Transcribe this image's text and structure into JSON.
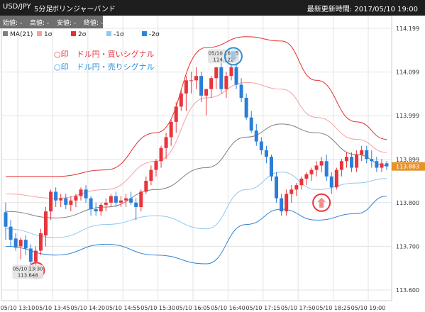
{
  "header": {
    "symbol": "USD/JPY",
    "timeframe": "5分足",
    "indicator": "ボリンジャーバンド",
    "updated_label": "最新更新時間: ",
    "updated_value": "2017/05/10 19:00"
  },
  "ohlc": {
    "open": "始値: -",
    "high": "高値: -",
    "low": "安値: -",
    "close": "終値: -"
  },
  "legend": [
    {
      "label": "MA(21)",
      "color": "#808080"
    },
    {
      "label": "1σ",
      "color": "#f5a0a0"
    },
    {
      "label": "2σ",
      "color": "#e62e2e"
    },
    {
      "label": "-1σ",
      "color": "#8fc8ef"
    },
    {
      "label": "-2σ",
      "color": "#2e86d6"
    }
  ],
  "signals": {
    "buy": "○印　ドル円・買いシグナル",
    "sell": "○印　ドル円・売りシグナル"
  },
  "colors": {
    "up": "#e8343c",
    "down": "#2a7ed8",
    "price_tag": "#e6932a"
  },
  "chart_data": {
    "type": "candlestick",
    "y_ticks": [
      "114.199",
      "114.099",
      "113.999",
      "113.899",
      "113.800",
      "113.700",
      "113.600"
    ],
    "ylim": [
      113.58,
      114.22
    ],
    "x_ticks": [
      "05/10 13:10",
      "05/10 13:45",
      "05/10 14:20",
      "05/10 14:55",
      "05/10 15:30",
      "05/10 16:05",
      "05/10 16:40",
      "05/10 17:15",
      "05/10 17:50",
      "05/10 18:25",
      "05/10 19:00"
    ],
    "current_price": "113.883",
    "candles": [
      [
        113.778,
        113.8,
        113.715,
        113.745
      ],
      [
        113.745,
        113.76,
        113.7,
        113.715
      ],
      [
        113.718,
        113.73,
        113.69,
        113.697
      ],
      [
        113.7,
        113.72,
        113.67,
        113.715
      ],
      [
        113.715,
        113.725,
        113.68,
        113.695
      ],
      [
        113.695,
        113.705,
        113.655,
        113.665
      ],
      [
        113.665,
        113.7,
        113.65,
        113.69
      ],
      [
        113.69,
        113.74,
        113.68,
        113.73
      ],
      [
        113.725,
        113.79,
        113.7,
        113.78
      ],
      [
        113.78,
        113.83,
        113.76,
        113.825
      ],
      [
        113.825,
        113.835,
        113.79,
        113.805
      ],
      [
        113.805,
        113.82,
        113.79,
        113.81
      ],
      [
        113.81,
        113.82,
        113.785,
        113.795
      ],
      [
        113.795,
        113.815,
        113.78,
        113.805
      ],
      [
        113.805,
        113.82,
        113.79,
        113.815
      ],
      [
        113.815,
        113.835,
        113.805,
        113.83
      ],
      [
        113.83,
        113.84,
        113.8,
        113.81
      ],
      [
        113.81,
        113.815,
        113.77,
        113.785
      ],
      [
        113.785,
        113.8,
        113.77,
        113.78
      ],
      [
        113.78,
        113.8,
        113.77,
        113.795
      ],
      [
        113.795,
        113.81,
        113.78,
        113.8
      ],
      [
        113.8,
        113.82,
        113.79,
        113.815
      ],
      [
        113.815,
        113.825,
        113.79,
        113.8
      ],
      [
        113.8,
        113.815,
        113.79,
        113.805
      ],
      [
        113.805,
        113.82,
        113.79,
        113.81
      ],
      [
        113.81,
        113.825,
        113.795,
        113.8
      ],
      [
        113.8,
        113.81,
        113.76,
        113.79
      ],
      [
        113.79,
        113.83,
        113.78,
        113.825
      ],
      [
        113.825,
        113.86,
        113.82,
        113.85
      ],
      [
        113.85,
        113.885,
        113.84,
        113.875
      ],
      [
        113.875,
        113.9,
        113.86,
        113.895
      ],
      [
        113.895,
        113.93,
        113.88,
        113.925
      ],
      [
        113.925,
        113.96,
        113.9,
        113.95
      ],
      [
        113.95,
        113.99,
        113.93,
        113.985
      ],
      [
        113.985,
        114.03,
        113.96,
        114.02
      ],
      [
        114.02,
        114.06,
        114.01,
        114.05
      ],
      [
        114.05,
        114.09,
        114.01,
        114.08
      ],
      [
        114.08,
        114.1,
        114.05,
        114.08
      ],
      [
        114.08,
        114.11,
        114.06,
        114.09
      ],
      [
        114.09,
        114.1,
        114.03,
        114.045
      ],
      [
        114.045,
        114.06,
        114.0,
        114.06
      ],
      [
        114.06,
        114.09,
        114.04,
        114.085
      ],
      [
        114.085,
        114.11,
        114.06,
        114.11
      ],
      [
        114.11,
        114.122,
        114.05,
        114.06
      ],
      [
        114.06,
        114.1,
        114.04,
        114.09
      ],
      [
        114.09,
        114.115,
        114.08,
        114.11
      ],
      [
        114.11,
        114.12,
        114.06,
        114.07
      ],
      [
        114.07,
        114.085,
        114.03,
        114.04
      ],
      [
        114.04,
        114.05,
        113.99,
        113.995
      ],
      [
        113.995,
        114.01,
        113.96,
        113.965
      ],
      [
        113.965,
        113.98,
        113.93,
        113.94
      ],
      [
        113.94,
        113.95,
        113.91,
        113.92
      ],
      [
        113.92,
        113.93,
        113.89,
        113.905
      ],
      [
        113.905,
        113.91,
        113.85,
        113.86
      ],
      [
        113.86,
        113.87,
        113.8,
        113.81
      ],
      [
        113.81,
        113.82,
        113.77,
        113.78
      ],
      [
        113.78,
        113.83,
        113.77,
        113.82
      ],
      [
        113.82,
        113.84,
        113.8,
        113.83
      ],
      [
        113.83,
        113.845,
        113.815,
        113.84
      ],
      [
        113.84,
        113.86,
        113.83,
        113.855
      ],
      [
        113.855,
        113.87,
        113.84,
        113.865
      ],
      [
        113.865,
        113.88,
        113.85,
        113.875
      ],
      [
        113.875,
        113.895,
        113.86,
        113.885
      ],
      [
        113.885,
        113.905,
        113.87,
        113.895
      ],
      [
        113.895,
        113.91,
        113.85,
        113.86
      ],
      [
        113.86,
        113.87,
        113.82,
        113.835
      ],
      [
        113.835,
        113.88,
        113.83,
        113.875
      ],
      [
        113.875,
        113.9,
        113.86,
        113.895
      ],
      [
        113.895,
        113.915,
        113.88,
        113.905
      ],
      [
        113.905,
        113.915,
        113.87,
        113.88
      ],
      [
        113.88,
        113.92,
        113.87,
        113.91
      ],
      [
        113.91,
        113.93,
        113.895,
        113.92
      ],
      [
        113.92,
        113.93,
        113.89,
        113.9
      ],
      [
        113.9,
        113.92,
        113.88,
        113.895
      ],
      [
        113.895,
        113.905,
        113.87,
        113.88
      ],
      [
        113.88,
        113.9,
        113.87,
        113.89
      ],
      [
        113.89,
        113.895,
        113.875,
        113.883
      ]
    ],
    "bands": {
      "ma": [
        [
          0,
          113.78
        ],
        [
          10,
          113.765
        ],
        [
          20,
          113.79
        ],
        [
          30,
          113.83
        ],
        [
          40,
          113.88
        ],
        [
          48,
          113.95
        ],
        [
          55,
          113.98
        ],
        [
          62,
          113.96
        ],
        [
          70,
          113.91
        ],
        [
          76,
          113.885
        ]
      ],
      "p1": [
        [
          0,
          113.82
        ],
        [
          10,
          113.81
        ],
        [
          20,
          113.83
        ],
        [
          30,
          113.895
        ],
        [
          40,
          114.04
        ],
        [
          48,
          114.075
        ],
        [
          55,
          114.06
        ],
        [
          62,
          113.995
        ],
        [
          70,
          113.945
        ],
        [
          76,
          113.915
        ]
      ],
      "p2": [
        [
          0,
          113.86
        ],
        [
          10,
          113.86
        ],
        [
          20,
          113.875
        ],
        [
          30,
          113.96
        ],
        [
          40,
          114.155
        ],
        [
          48,
          114.18
        ],
        [
          55,
          114.17
        ],
        [
          62,
          114.08
        ],
        [
          70,
          113.985
        ],
        [
          76,
          113.945
        ]
      ],
      "m1": [
        [
          0,
          113.74
        ],
        [
          10,
          113.72
        ],
        [
          20,
          113.75
        ],
        [
          30,
          113.77
        ],
        [
          40,
          113.74
        ],
        [
          48,
          113.83
        ],
        [
          55,
          113.87
        ],
        [
          62,
          113.83
        ],
        [
          70,
          113.845
        ],
        [
          76,
          113.855
        ]
      ],
      "m2": [
        [
          0,
          113.7
        ],
        [
          10,
          113.68
        ],
        [
          20,
          113.705
        ],
        [
          30,
          113.68
        ],
        [
          40,
          113.66
        ],
        [
          48,
          113.75
        ],
        [
          55,
          113.785
        ],
        [
          62,
          113.76
        ],
        [
          70,
          113.775
        ],
        [
          76,
          113.815
        ]
      ]
    },
    "signals": [
      {
        "kind": "buy-low",
        "index": 5,
        "price": 113.648,
        "label_time": "05/10 13:30",
        "label_price": "113.648"
      },
      {
        "kind": "sell-high",
        "index": 44,
        "price": 114.122,
        "label_time": "05/10 16:15",
        "label_price": "114.122"
      },
      {
        "kind": "buy-arrow",
        "index": 63,
        "price": 113.8
      }
    ]
  }
}
